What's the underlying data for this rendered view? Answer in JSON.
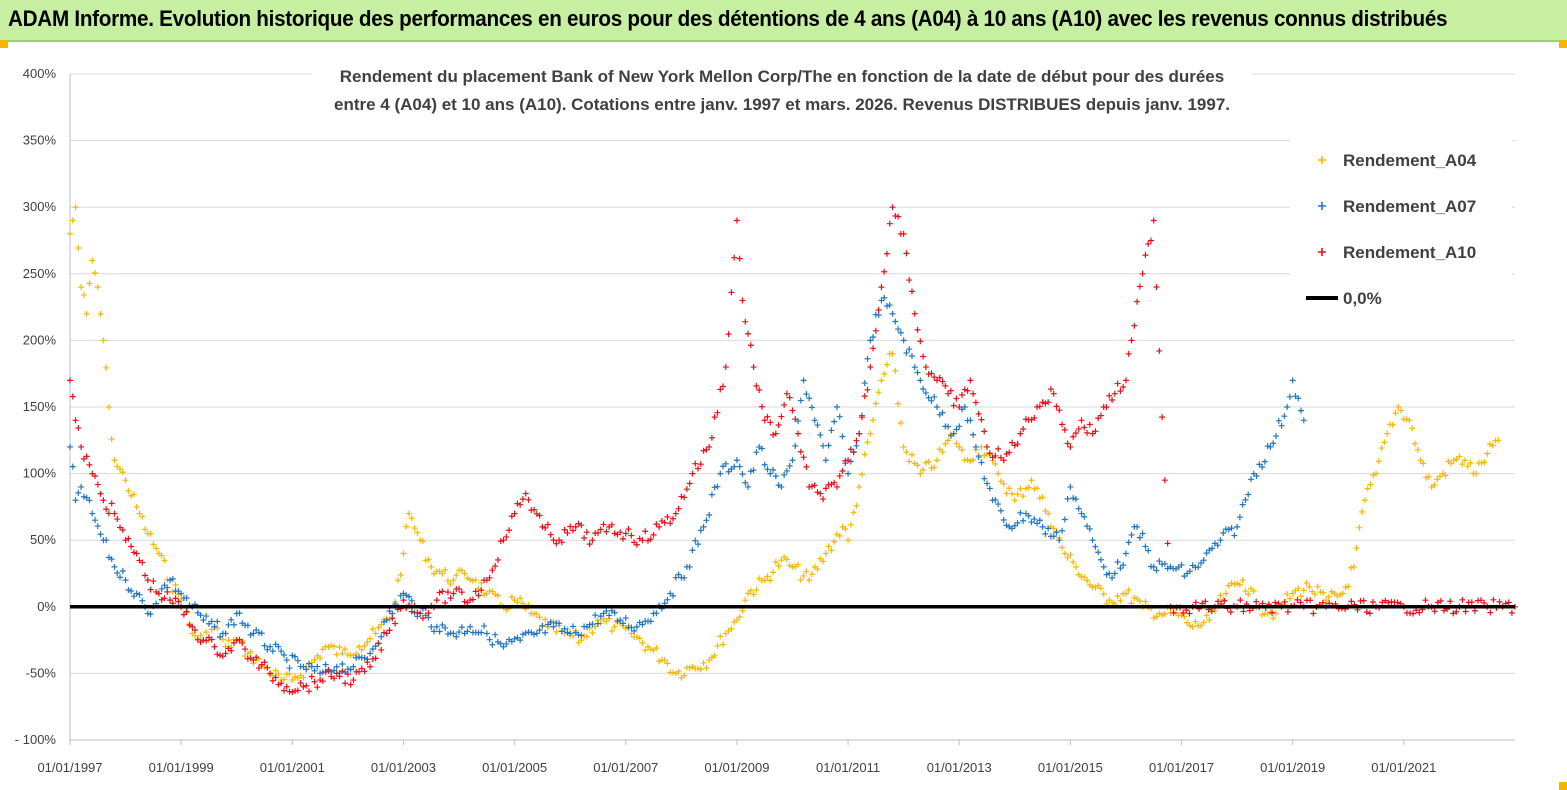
{
  "header": {
    "title": "ADAM Informe. Evolution historique des performances en euros pour des détentions de 4 ans (A04) à 10 ans (A10) avec les revenus connus distribués"
  },
  "chart_data": {
    "type": "scatter",
    "title": "Rendement du placement Bank of New York Mellon Corp/The en fonction de la date de début pour des durées",
    "subtitle": "entre 4 (A04) et 10 ans (A10).  Cotations entre janv. 1997 et mars. 2026. Revenus DISTRIBUES depuis janv. 1997.",
    "xlabel": "",
    "ylabel": "",
    "xlim": [
      1997.0,
      2023.0
    ],
    "ylim": [
      -100,
      400
    ],
    "x_tick_labels": [
      "01/01/1997",
      "01/01/1999",
      "01/01/2001",
      "01/01/2003",
      "01/01/2005",
      "01/01/2007",
      "01/01/2009",
      "01/01/2011",
      "01/01/2013",
      "01/01/2015",
      "01/01/2017",
      "01/01/2019",
      "01/01/2021"
    ],
    "x_tick_values": [
      1997,
      1999,
      2001,
      2003,
      2005,
      2007,
      2009,
      2011,
      2013,
      2015,
      2017,
      2019,
      2021
    ],
    "y_tick_labels": [
      "- 100%",
      "-50%",
      "0%",
      "50%",
      "100%",
      "150%",
      "200%",
      "250%",
      "300%",
      "350%",
      "400%"
    ],
    "y_tick_values": [
      -100,
      -50,
      0,
      50,
      100,
      150,
      200,
      250,
      300,
      350,
      400
    ],
    "grid": "horizontal",
    "legend_position": "top-right",
    "series": [
      {
        "name": "Rendement_A04",
        "color": "#f5b800",
        "marker": "plus",
        "x": [
          1997.0,
          1997.1,
          1997.2,
          1997.3,
          1997.4,
          1997.5,
          1997.6,
          1997.7,
          1997.8,
          1998.0,
          1998.2,
          1998.4,
          1998.6,
          1998.8,
          1999.0,
          1999.2,
          1999.4,
          1999.6,
          1999.8,
          2000.0,
          2000.2,
          2000.5,
          2000.8,
          2001.0,
          2001.3,
          2001.6,
          2001.9,
          2002.2,
          2002.5,
          2002.8,
          2003.0,
          2003.1,
          2003.3,
          2003.5,
          2003.7,
          2003.9,
          2004.1,
          2004.3,
          2004.5,
          2004.8,
          2005.0,
          2005.3,
          2005.6,
          2005.9,
          2006.2,
          2006.5,
          2006.8,
          2007.1,
          2007.4,
          2007.7,
          2007.9,
          2008.2,
          2008.5,
          2008.8,
          2009.0,
          2009.2,
          2009.5,
          2009.8,
          2010.0,
          2010.3,
          2010.6,
          2010.9,
          2011.0,
          2011.2,
          2011.4,
          2011.6,
          2011.8,
          2012.0,
          2012.3,
          2012.6,
          2012.9,
          2013.1,
          2013.4,
          2013.7,
          2014.0,
          2014.3,
          2014.6,
          2014.9,
          2015.1,
          2015.4,
          2015.7,
          2016.0,
          2016.3,
          2016.6,
          2016.9,
          2017.2,
          2017.5,
          2017.8,
          2018.1,
          2018.4,
          2018.7,
          2019.0,
          2019.3,
          2019.6,
          2019.9,
          2020.1,
          2020.3,
          2020.5,
          2020.7,
          2020.9,
          2021.1,
          2021.3,
          2021.5,
          2021.7,
          2021.9,
          2022.1,
          2022.3,
          2022.5,
          2022.7
        ],
        "y": [
          280,
          300,
          240,
          220,
          260,
          240,
          200,
          150,
          110,
          95,
          75,
          55,
          40,
          20,
          5,
          -20,
          -25,
          -15,
          -30,
          -25,
          -35,
          -45,
          -55,
          -55,
          -45,
          -30,
          -35,
          -30,
          -20,
          -5,
          40,
          70,
          50,
          30,
          25,
          20,
          25,
          20,
          10,
          0,
          5,
          -5,
          -15,
          -20,
          -25,
          -10,
          -15,
          -20,
          -30,
          -40,
          -50,
          -45,
          -40,
          -20,
          -10,
          10,
          20,
          35,
          30,
          20,
          40,
          60,
          50,
          90,
          130,
          170,
          190,
          120,
          100,
          110,
          130,
          110,
          120,
          100,
          80,
          95,
          70,
          40,
          30,
          15,
          5,
          10,
          0,
          -5,
          -5,
          -15,
          -10,
          10,
          20,
          0,
          -5,
          10,
          15,
          5,
          10,
          30,
          80,
          100,
          130,
          150,
          140,
          110,
          90,
          100,
          110,
          110,
          100,
          115,
          125
        ]
      },
      {
        "name": "Rendement_A07",
        "color": "#1f77c4",
        "marker": "plus",
        "x": [
          1997.0,
          1997.1,
          1997.2,
          1997.4,
          1997.6,
          1997.8,
          1998.0,
          1998.2,
          1998.4,
          1998.6,
          1998.8,
          1999.0,
          1999.2,
          1999.4,
          1999.6,
          1999.8,
          2000.0,
          2000.3,
          2000.6,
          2000.9,
          2001.2,
          2001.5,
          2001.8,
          2002.1,
          2002.4,
          2002.7,
          2003.0,
          2003.3,
          2003.6,
          2003.9,
          2004.2,
          2004.5,
          2004.8,
          2005.1,
          2005.4,
          2005.7,
          2006.0,
          2006.3,
          2006.6,
          2006.9,
          2007.2,
          2007.5,
          2007.8,
          2008.1,
          2008.4,
          2008.7,
          2009.0,
          2009.2,
          2009.4,
          2009.6,
          2009.8,
          2010.0,
          2010.2,
          2010.4,
          2010.6,
          2010.8,
          2011.0,
          2011.2,
          2011.4,
          2011.6,
          2011.8,
          2012.0,
          2012.3,
          2012.6,
          2012.9,
          2013.1,
          2013.3,
          2013.6,
          2013.9,
          2014.2,
          2014.5,
          2014.8,
          2015.0,
          2015.2,
          2015.4,
          2015.6,
          2015.8,
          2016.0,
          2016.2,
          2016.5,
          2016.8,
          2017.1,
          2017.4,
          2017.7,
          2018.0,
          2018.3,
          2018.6,
          2018.9,
          2019.0,
          2019.2
        ],
        "y": [
          120,
          80,
          90,
          70,
          50,
          30,
          20,
          10,
          -5,
          10,
          20,
          10,
          0,
          -10,
          -15,
          -20,
          -5,
          -20,
          -30,
          -40,
          -45,
          -50,
          -45,
          -45,
          -35,
          -10,
          10,
          -5,
          -15,
          -20,
          -15,
          -20,
          -30,
          -25,
          -20,
          -15,
          -20,
          -15,
          -5,
          -10,
          -15,
          -5,
          10,
          30,
          60,
          100,
          110,
          90,
          120,
          100,
          90,
          110,
          170,
          140,
          110,
          150,
          100,
          130,
          200,
          230,
          220,
          200,
          170,
          150,
          130,
          150,
          120,
          80,
          60,
          70,
          60,
          50,
          90,
          70,
          50,
          30,
          25,
          40,
          60,
          30,
          30,
          25,
          35,
          50,
          60,
          100,
          120,
          150,
          170,
          140
        ]
      },
      {
        "name": "Rendement_A10",
        "color": "#e8101a",
        "marker": "plus",
        "x": [
          1997.0,
          1997.1,
          1997.2,
          1997.4,
          1997.6,
          1997.8,
          1998.0,
          1998.2,
          1998.4,
          1998.6,
          1998.8,
          1999.0,
          1999.2,
          1999.4,
          1999.6,
          1999.8,
          2000.0,
          2000.3,
          2000.6,
          2000.9,
          2001.2,
          2001.5,
          2001.8,
          2002.1,
          2002.4,
          2002.7,
          2003.0,
          2003.3,
          2003.6,
          2003.9,
          2004.2,
          2004.5,
          2004.8,
          2005.0,
          2005.2,
          2005.5,
          2005.8,
          2006.1,
          2006.4,
          2006.7,
          2007.0,
          2007.3,
          2007.6,
          2007.9,
          2008.2,
          2008.5,
          2008.8,
          2009.0,
          2009.1,
          2009.3,
          2009.5,
          2009.7,
          2009.9,
          2010.1,
          2010.3,
          2010.5,
          2010.8,
          2011.0,
          2011.2,
          2011.4,
          2011.6,
          2011.8,
          2012.0,
          2012.2,
          2012.4,
          2012.6,
          2012.8,
          2013.0,
          2013.2,
          2013.5,
          2013.8,
          2014.1,
          2014.4,
          2014.7,
          2015.0,
          2015.2,
          2015.4,
          2015.6,
          2015.8,
          2016.0,
          2016.1,
          2016.3,
          2016.5,
          2016.8,
          2017.2,
          2017.6,
          2018.0,
          2018.4,
          2018.8,
          2019.2,
          2019.6,
          2020.0,
          2020.5,
          2021.0,
          2021.5,
          2022.0,
          2022.5,
          2023.0
        ],
        "y": [
          170,
          140,
          120,
          100,
          80,
          70,
          50,
          40,
          20,
          10,
          5,
          0,
          -15,
          -25,
          -30,
          -35,
          -25,
          -40,
          -50,
          -60,
          -60,
          -55,
          -50,
          -55,
          -45,
          -20,
          5,
          -5,
          5,
          10,
          5,
          20,
          50,
          70,
          85,
          60,
          50,
          60,
          50,
          60,
          55,
          50,
          60,
          70,
          100,
          120,
          180,
          290,
          230,
          180,
          140,
          130,
          160,
          130,
          90,
          85,
          90,
          110,
          130,
          180,
          240,
          300,
          280,
          220,
          180,
          170,
          160,
          150,
          170,
          120,
          110,
          130,
          150,
          160,
          120,
          140,
          130,
          150,
          160,
          170,
          200,
          250,
          290,
          0,
          0,
          0,
          0,
          0,
          0,
          0,
          0,
          0,
          0,
          0,
          0,
          0,
          0,
          0
        ]
      },
      {
        "name": "0,0%",
        "color": "#000000",
        "marker": "line",
        "x": [
          1997.0,
          2023.0
        ],
        "y": [
          0,
          0
        ]
      }
    ]
  }
}
